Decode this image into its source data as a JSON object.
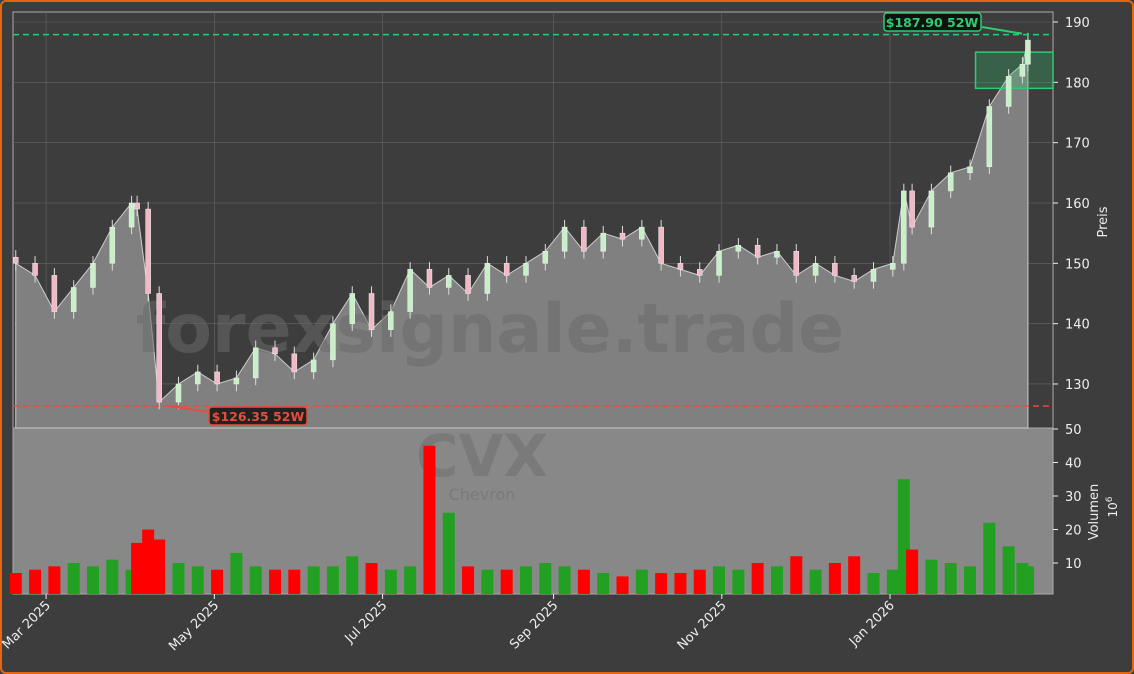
{
  "chart_data": {
    "type": "candlestick",
    "ticker_watermark": "CVX",
    "company_watermark": "Chevron",
    "site_watermark": "forexsignale.trade",
    "ylabel_price": "Preis",
    "ylabel_volume": "Volumen",
    "volume_unit": "10",
    "volume_unit_exp": "6",
    "price_ylim": [
      124,
      192
    ],
    "price_ticks": [
      130,
      140,
      150,
      160,
      170,
      180,
      190
    ],
    "volume_ylim": [
      0,
      52
    ],
    "volume_ticks": [
      10,
      20,
      30,
      40,
      50
    ],
    "x_ticks": [
      {
        "date": "2025-03-01",
        "label": "Mar 2025"
      },
      {
        "date": "2025-05-01",
        "label": "May 2025"
      },
      {
        "date": "2025-07-01",
        "label": "Jul 2025"
      },
      {
        "date": "2025-09-01",
        "label": "Sep 2025"
      },
      {
        "date": "2025-11-01",
        "label": "Nov 2025"
      },
      {
        "date": "2026-01-01",
        "label": "Jan 2026"
      }
    ],
    "grid": true,
    "high_52w": {
      "value": 187.9,
      "label": "$187.90 52W",
      "color": "#2ecc71"
    },
    "low_52w": {
      "value": 126.35,
      "label": "$126.35 52W",
      "color": "#e74c3c"
    },
    "range_box": {
      "from": "2026-02-01",
      "to": "2026-02-26",
      "low": 179,
      "high": 185
    },
    "colors": {
      "up": "#22a022",
      "down": "#ff0000",
      "area": "#808080",
      "volume_bg": "#888888"
    },
    "dates": [
      "2025-02-18",
      "2025-02-25",
      "2025-03-04",
      "2025-03-11",
      "2025-03-18",
      "2025-03-25",
      "2025-04-01",
      "2025-04-03",
      "2025-04-07",
      "2025-04-11",
      "2025-04-18",
      "2025-04-25",
      "2025-05-02",
      "2025-05-09",
      "2025-05-16",
      "2025-05-23",
      "2025-05-30",
      "2025-06-06",
      "2025-06-13",
      "2025-06-20",
      "2025-06-27",
      "2025-07-04",
      "2025-07-11",
      "2025-07-18",
      "2025-07-25",
      "2025-08-01",
      "2025-08-08",
      "2025-08-15",
      "2025-08-22",
      "2025-08-29",
      "2025-09-05",
      "2025-09-12",
      "2025-09-19",
      "2025-09-26",
      "2025-10-03",
      "2025-10-10",
      "2025-10-17",
      "2025-10-24",
      "2025-10-31",
      "2025-11-07",
      "2025-11-14",
      "2025-11-21",
      "2025-11-28",
      "2025-12-05",
      "2025-12-12",
      "2025-12-19",
      "2025-12-26",
      "2026-01-02",
      "2026-01-06",
      "2026-01-09",
      "2026-01-16",
      "2026-01-23",
      "2026-01-30",
      "2026-02-06",
      "2026-02-13",
      "2026-02-18",
      "2026-02-20"
    ],
    "close": [
      150,
      148,
      142,
      146,
      150,
      156,
      160,
      159,
      145,
      127,
      130,
      132,
      130,
      131,
      136,
      135,
      132,
      134,
      140,
      145,
      139,
      142,
      149,
      146,
      148,
      145,
      150,
      148,
      150,
      152,
      156,
      152,
      155,
      154,
      156,
      150,
      149,
      148,
      152,
      153,
      151,
      152,
      148,
      150,
      148,
      147,
      149,
      150,
      162,
      156,
      162,
      165,
      166,
      176,
      181,
      183,
      187
    ],
    "volume": [
      7,
      8,
      9,
      10,
      9,
      11,
      8,
      16,
      20,
      17,
      10,
      9,
      8,
      13,
      9,
      8,
      8,
      9,
      9,
      12,
      10,
      8,
      9,
      45,
      25,
      9,
      8,
      8,
      9,
      10,
      9,
      8,
      7,
      6,
      8,
      7,
      7,
      8,
      9,
      8,
      10,
      9,
      12,
      8,
      10,
      12,
      7,
      8,
      35,
      14,
      11,
      10,
      9,
      22,
      15,
      10,
      9
    ]
  }
}
